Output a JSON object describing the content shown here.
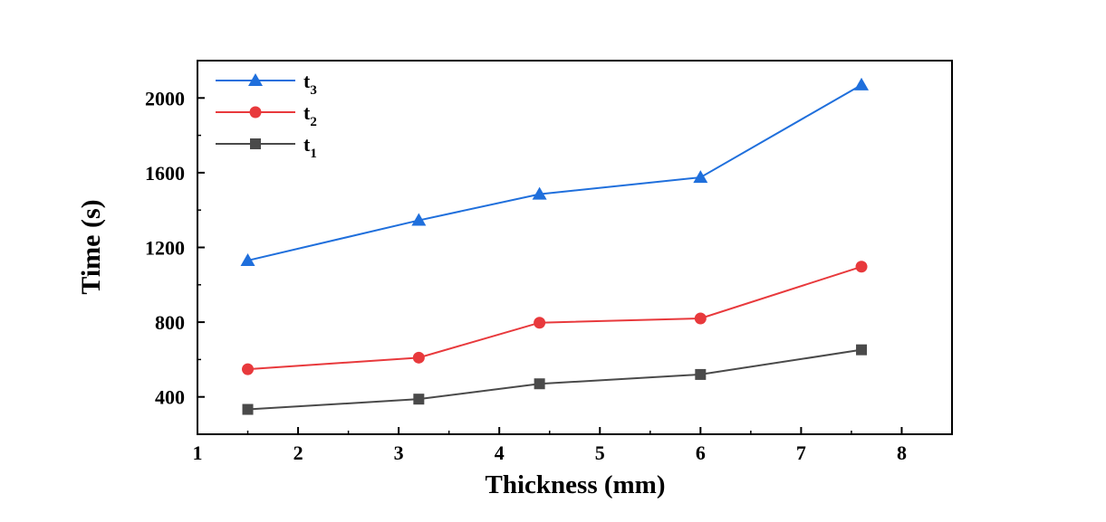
{
  "chart_data": {
    "type": "line",
    "title": "",
    "xlabel": "Thickness (mm)",
    "ylabel": "Time (s)",
    "xlim": [
      1,
      8.5
    ],
    "ylim": [
      200,
      2200
    ],
    "xticks": [
      1,
      2,
      3,
      4,
      5,
      6,
      7,
      8
    ],
    "yticks": [
      400,
      800,
      1200,
      1600,
      2000
    ],
    "x": [
      1.5,
      3.2,
      4.4,
      6.0,
      7.6
    ],
    "legend_position": "top-left",
    "series": [
      {
        "name": "t3",
        "label_base": "t",
        "label_sub": "3",
        "color": "#1f6fdc",
        "marker": "triangle",
        "values": [
          1130,
          1345,
          1485,
          1575,
          2070
        ]
      },
      {
        "name": "t2",
        "label_base": "t",
        "label_sub": "2",
        "color": "#e8393c",
        "marker": "circle",
        "values": [
          548,
          610,
          797,
          820,
          1097
        ]
      },
      {
        "name": "t1",
        "label_base": "t",
        "label_sub": "1",
        "color": "#4a4a4a",
        "marker": "square",
        "values": [
          333,
          388,
          470,
          520,
          652
        ]
      }
    ]
  }
}
